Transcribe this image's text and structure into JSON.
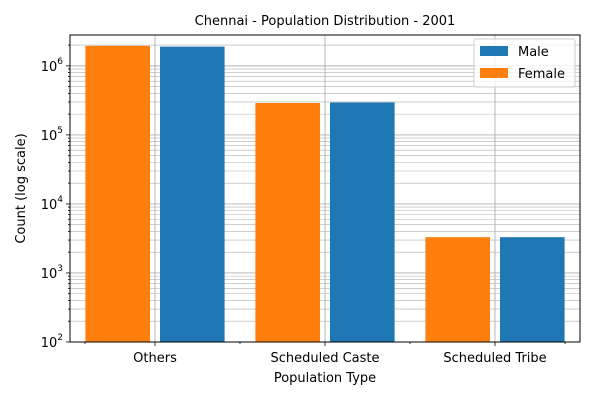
{
  "chart_data": {
    "type": "bar",
    "title": "Chennai - Population Distribution - 2001",
    "xlabel": "Population Type",
    "ylabel": "Count (log scale)",
    "yscale": "log",
    "ylim": [
      100,
      2800000
    ],
    "grid": true,
    "legend_position": "top-right",
    "categories": [
      "Others",
      "Scheduled Caste",
      "Scheduled Tribe"
    ],
    "y_ticks": [
      {
        "base": "10",
        "exp": "2"
      },
      {
        "base": "10",
        "exp": "3"
      },
      {
        "base": "10",
        "exp": "4"
      },
      {
        "base": "10",
        "exp": "5"
      },
      {
        "base": "10",
        "exp": "6"
      }
    ],
    "series": [
      {
        "name": "Female",
        "color": "#ff7f0e",
        "values": [
          1950000,
          290000,
          3300
        ]
      },
      {
        "name": "Male",
        "color": "#1f77b4",
        "values": [
          1900000,
          295000,
          3300
        ]
      }
    ],
    "legend_order": [
      "Male",
      "Female"
    ]
  }
}
